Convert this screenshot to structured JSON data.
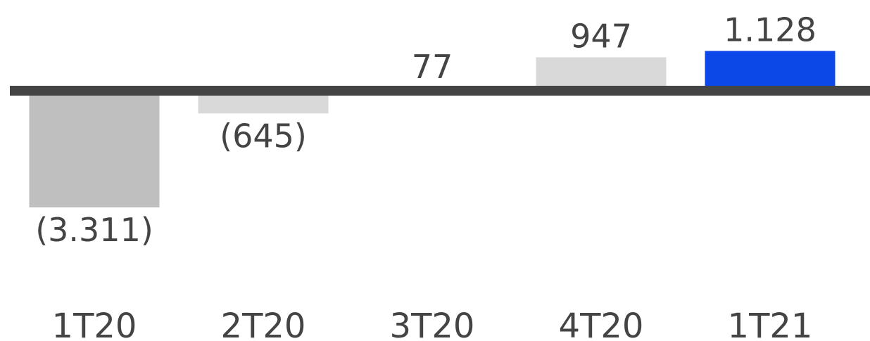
{
  "chart_data": {
    "type": "bar",
    "categories": [
      "1T20",
      "2T20",
      "3T20",
      "4T20",
      "1T21"
    ],
    "values": [
      -3311,
      -645,
      77,
      947,
      1128
    ],
    "value_labels": [
      "(3.311)",
      "(645)",
      "77",
      "947",
      "1.128"
    ],
    "title": "",
    "xlabel": "",
    "ylabel": "",
    "ylim": [
      -3311,
      1128
    ],
    "grid": false,
    "bar_colors": [
      "#bfbfbf",
      "#d9d9d9",
      "#d9d9d9",
      "#d9d9d9",
      "#0c47e8"
    ],
    "zero_line_color": "#444444",
    "text_color": "#444444"
  }
}
